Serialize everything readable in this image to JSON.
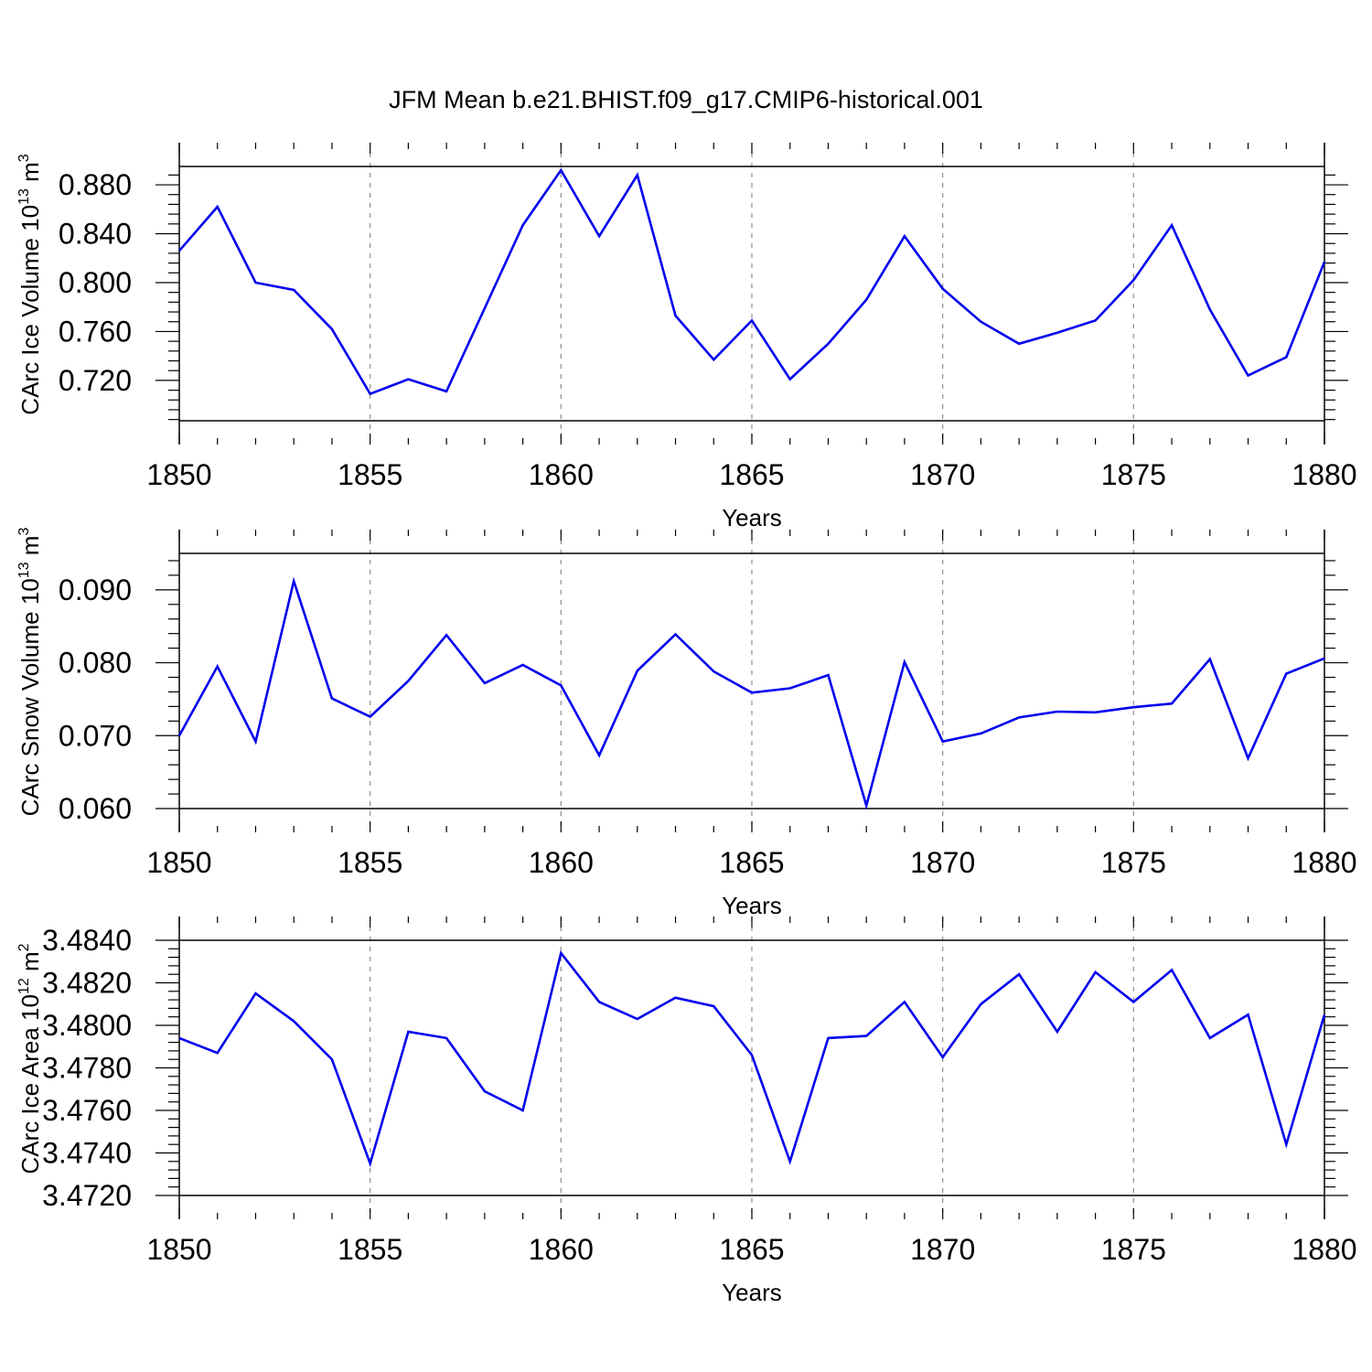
{
  "title": "JFM Mean b.e21.BHIST.f09_g17.CMIP6-historical.001",
  "colors": {
    "line": "#0000ee",
    "axis": "#000000",
    "grid": "#999999"
  },
  "chart_data": [
    {
      "type": "line",
      "ylabel": "CArc Ice Volume 10",
      "ylabel_exp": "13",
      "ylabel_unit": " m",
      "ylabel_unit_exp": "3",
      "xlabel": "Years",
      "xlim": [
        1850,
        1880
      ],
      "ylim": [
        0.687,
        0.895
      ],
      "yticks": [
        "0.720",
        "0.760",
        "0.800",
        "0.840",
        "0.880"
      ],
      "xticks": [
        "1850",
        "1855",
        "1860",
        "1865",
        "1870",
        "1875",
        "1880"
      ],
      "x": [
        1850,
        1851,
        1852,
        1853,
        1854,
        1855,
        1856,
        1857,
        1858,
        1859,
        1860,
        1861,
        1862,
        1863,
        1864,
        1865,
        1866,
        1867,
        1868,
        1869,
        1870,
        1871,
        1872,
        1873,
        1874,
        1875,
        1876,
        1877,
        1878,
        1879,
        1880
      ],
      "values": [
        0.826,
        0.862,
        0.8,
        0.794,
        0.762,
        0.709,
        0.721,
        0.711,
        0.779,
        0.847,
        0.892,
        0.838,
        0.888,
        0.773,
        0.737,
        0.769,
        0.721,
        0.75,
        0.786,
        0.838,
        0.795,
        0.768,
        0.75,
        0.759,
        0.769,
        0.802,
        0.847,
        0.778,
        0.724,
        0.739,
        0.817
      ],
      "grid": "vertical dashed at major x ticks"
    },
    {
      "type": "line",
      "ylabel": "CArc Snow Volume 10",
      "ylabel_exp": "13",
      "ylabel_unit": " m",
      "ylabel_unit_exp": "3",
      "xlabel": "Years",
      "xlim": [
        1850,
        1880
      ],
      "ylim": [
        0.06,
        0.095
      ],
      "yticks": [
        "0.060",
        "0.070",
        "0.080",
        "0.090"
      ],
      "xticks": [
        "1850",
        "1855",
        "1860",
        "1865",
        "1870",
        "1875",
        "1880"
      ],
      "x": [
        1850,
        1851,
        1852,
        1853,
        1854,
        1855,
        1856,
        1857,
        1858,
        1859,
        1860,
        1861,
        1862,
        1863,
        1864,
        1865,
        1866,
        1867,
        1868,
        1869,
        1870,
        1871,
        1872,
        1873,
        1874,
        1875,
        1876,
        1877,
        1878,
        1879,
        1880
      ],
      "values": [
        0.07,
        0.0795,
        0.0692,
        0.0912,
        0.0751,
        0.0726,
        0.0775,
        0.0838,
        0.0772,
        0.0797,
        0.0769,
        0.0673,
        0.0789,
        0.0839,
        0.0788,
        0.0759,
        0.0765,
        0.0783,
        0.0604,
        0.0801,
        0.0692,
        0.0703,
        0.0725,
        0.0733,
        0.0732,
        0.0739,
        0.0744,
        0.0805,
        0.0669,
        0.0785,
        0.0806
      ],
      "grid": "vertical dashed at major x ticks"
    },
    {
      "type": "line",
      "ylabel": "CArc Ice Area 10",
      "ylabel_exp": "12",
      "ylabel_unit": " m",
      "ylabel_unit_exp": "2",
      "xlabel": "Years",
      "xlim": [
        1850,
        1880
      ],
      "ylim": [
        3.472,
        3.484
      ],
      "yticks": [
        "3.4720",
        "3.4740",
        "3.4760",
        "3.4780",
        "3.4800",
        "3.4820",
        "3.4840"
      ],
      "xticks": [
        "1850",
        "1855",
        "1860",
        "1865",
        "1870",
        "1875",
        "1880"
      ],
      "x": [
        1850,
        1851,
        1852,
        1853,
        1854,
        1855,
        1856,
        1857,
        1858,
        1859,
        1860,
        1861,
        1862,
        1863,
        1864,
        1865,
        1866,
        1867,
        1868,
        1869,
        1870,
        1871,
        1872,
        1873,
        1874,
        1875,
        1876,
        1877,
        1878,
        1879,
        1880
      ],
      "values": [
        3.4794,
        3.4787,
        3.4815,
        3.4802,
        3.4784,
        3.4735,
        3.4797,
        3.4794,
        3.4769,
        3.476,
        3.4834,
        3.4811,
        3.4803,
        3.4813,
        3.4809,
        3.4786,
        3.4736,
        3.4794,
        3.4795,
        3.4811,
        3.4785,
        3.481,
        3.4824,
        3.4797,
        3.4825,
        3.4811,
        3.4826,
        3.4794,
        3.4805,
        3.4744,
        3.4805
      ],
      "grid": "vertical dashed at major x ticks"
    }
  ]
}
